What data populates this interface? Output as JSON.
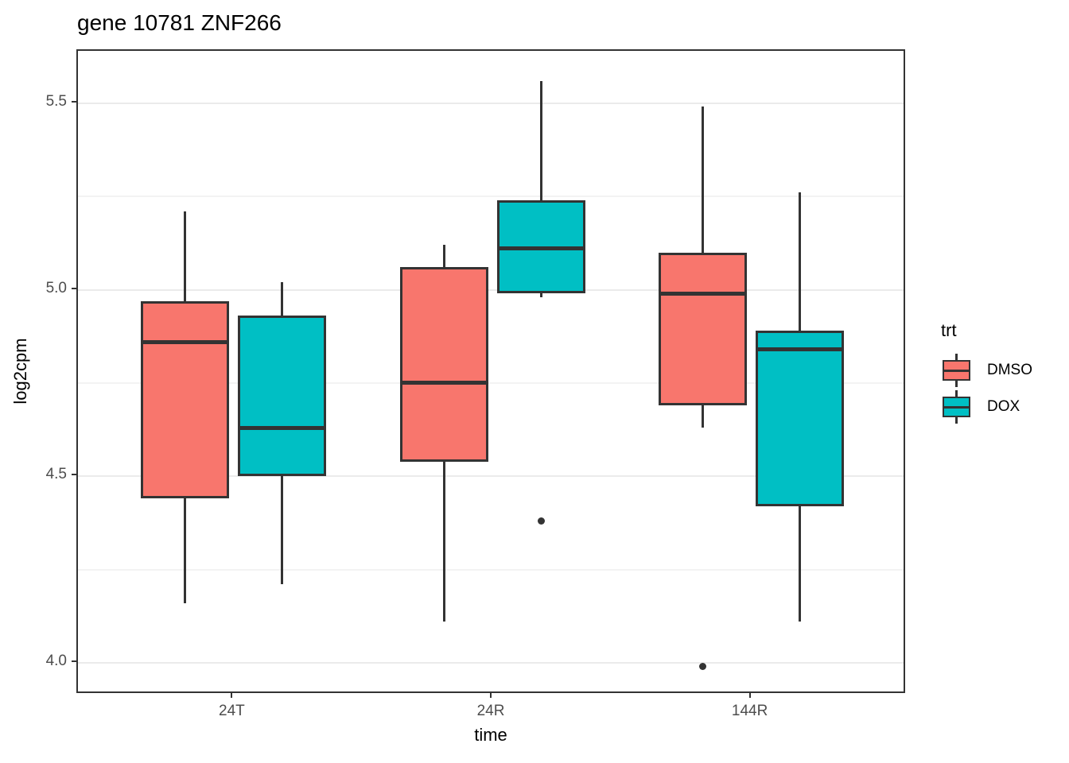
{
  "title": "gene 10781 ZNF266",
  "chart_data": {
    "type": "boxplot",
    "title": "gene 10781 ZNF266",
    "xlabel": "time",
    "ylabel": "log2cpm",
    "categories": [
      "24T",
      "24R",
      "144R"
    ],
    "ylim": [
      3.915,
      5.64
    ],
    "y_major_ticks": [
      4.0,
      4.5,
      5.0,
      5.5
    ],
    "y_tick_labels": [
      "4.0",
      "4.5",
      "5.0",
      "5.5"
    ],
    "y_minor_ticks": [
      4.25,
      4.75,
      5.25
    ],
    "grid": "horizontal major+minor",
    "legend_position": "right",
    "legend_title": "trt",
    "series": [
      {
        "name": "DMSO",
        "color": "#F8766D",
        "boxes": [
          {
            "category": "24T",
            "whisker_low": 4.16,
            "q1": 4.44,
            "median": 4.86,
            "q3": 4.97,
            "whisker_high": 5.21,
            "outliers": []
          },
          {
            "category": "24R",
            "whisker_low": 4.11,
            "q1": 4.54,
            "median": 4.75,
            "q3": 5.06,
            "whisker_high": 5.12,
            "outliers": []
          },
          {
            "category": "144R",
            "whisker_low": 4.63,
            "q1": 4.69,
            "median": 4.99,
            "q3": 5.1,
            "whisker_high": 5.49,
            "outliers": [
              3.99
            ]
          }
        ]
      },
      {
        "name": "DOX",
        "color": "#00BFC4",
        "boxes": [
          {
            "category": "24T",
            "whisker_low": 4.21,
            "q1": 4.5,
            "median": 4.63,
            "q3": 4.93,
            "whisker_high": 5.02,
            "outliers": []
          },
          {
            "category": "24R",
            "whisker_low": 4.98,
            "q1": 4.99,
            "median": 5.11,
            "q3": 5.24,
            "whisker_high": 5.56,
            "outliers": [
              4.38
            ]
          },
          {
            "category": "144R",
            "whisker_low": 4.11,
            "q1": 4.42,
            "median": 4.84,
            "q3": 4.89,
            "whisker_high": 5.26,
            "outliers": []
          }
        ]
      }
    ],
    "colors": {
      "stroke": "#333333",
      "grid_major": "#EBEBEB",
      "grid_minor": "#F3F3F3",
      "panel_border": "#333333",
      "tick_label": "#4D4D4D",
      "text": "#000000",
      "background": "#FFFFFF"
    }
  }
}
